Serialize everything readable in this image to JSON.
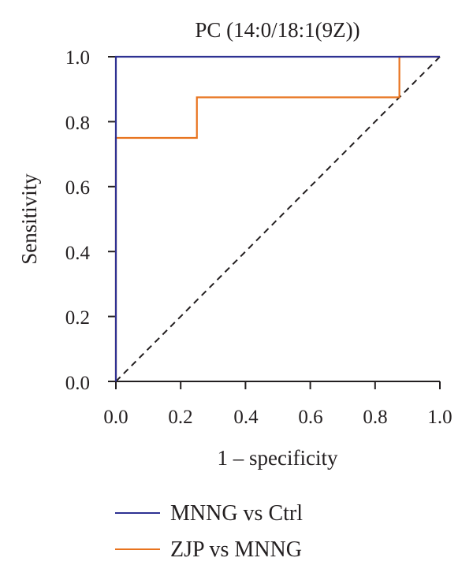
{
  "chart_data": {
    "type": "line",
    "title": "PC (14:0/18:1(9Z))",
    "xlabel": "1 – specificity",
    "ylabel": "Sensitivity",
    "xlim": [
      0,
      1
    ],
    "ylim": [
      0,
      1
    ],
    "x_ticks": [
      "0.0",
      "0.2",
      "0.4",
      "0.6",
      "0.8",
      "1.0"
    ],
    "y_ticks": [
      "0.0",
      "0.2",
      "0.4",
      "0.6",
      "0.8",
      "1.0"
    ],
    "grid": false,
    "legend_position": "bottom",
    "reference_line": {
      "style": "dashed",
      "x": [
        0,
        1
      ],
      "y": [
        0,
        1
      ]
    },
    "series": [
      {
        "name": "MNNG vs Ctrl",
        "color": "#2e3192",
        "x": [
          0,
          0,
          1
        ],
        "y": [
          0,
          1,
          1
        ]
      },
      {
        "name": "ZJP vs MNNG",
        "color": "#e8731e",
        "x": [
          0,
          0,
          0.25,
          0.25,
          0.875,
          0.875,
          1
        ],
        "y": [
          0,
          0.75,
          0.75,
          0.875,
          0.875,
          1,
          1
        ]
      }
    ]
  }
}
